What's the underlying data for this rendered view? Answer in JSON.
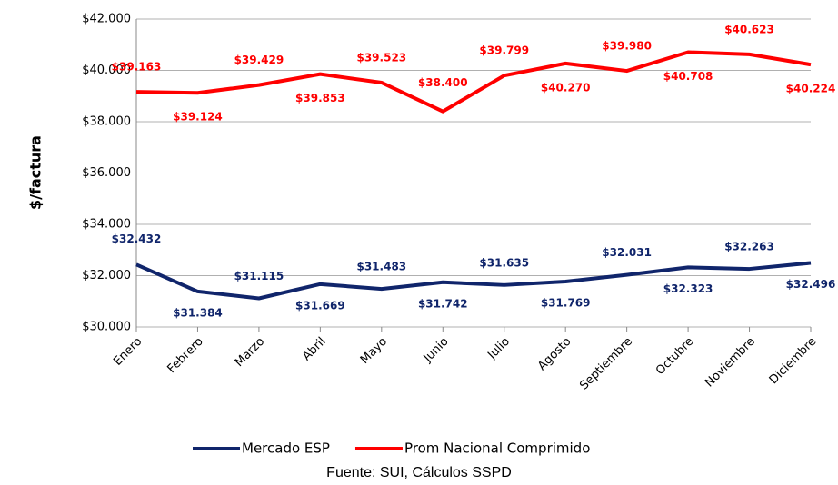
{
  "chart_data": {
    "type": "line",
    "ylabel": "$/factura",
    "source": "Fuente: SUI, Cálculos SSPD",
    "categories": [
      "Enero",
      "Febrero",
      "Marzo",
      "Abril",
      "Mayo",
      "Junio",
      "Julio",
      "Agosto",
      "Septiembre",
      "Octubre",
      "Noviembre",
      "Diciembre"
    ],
    "series": [
      {
        "name": "Mercado ESP",
        "color": "#10256b",
        "values": [
          32432,
          31384,
          31115,
          31669,
          31483,
          31742,
          31635,
          31769,
          32031,
          32323,
          32263,
          32496
        ],
        "value_labels": [
          "$32.432",
          "$31.384",
          "$31.115",
          "$31.669",
          "$31.483",
          "$31.742",
          "$31.635",
          "$31.769",
          "$32.031",
          "$32.323",
          "$32.263",
          "$32.496"
        ]
      },
      {
        "name": "Prom Nacional Comprimido",
        "color": "#ff0000",
        "values": [
          39163,
          39124,
          39429,
          39853,
          39523,
          38400,
          39799,
          40270,
          39980,
          40708,
          40623,
          40224
        ],
        "value_labels": [
          "$39.163",
          "$39.124",
          "$39.429",
          "$39.853",
          "$39.523",
          "$38.400",
          "$39.799",
          "$40.270",
          "$39.980",
          "$40.708",
          "$40.623",
          "$40.224"
        ]
      }
    ],
    "ylim": [
      30000,
      42000
    ],
    "yticks": [
      {
        "value": 30000,
        "label": "$30.000"
      },
      {
        "value": 32000,
        "label": "$32.000"
      },
      {
        "value": 34000,
        "label": "$34.000"
      },
      {
        "value": 36000,
        "label": "$36.000"
      },
      {
        "value": 38000,
        "label": "$38.000"
      },
      {
        "value": 40000,
        "label": "$40.000"
      },
      {
        "value": 42000,
        "label": "$42.000"
      }
    ],
    "grid": true
  }
}
